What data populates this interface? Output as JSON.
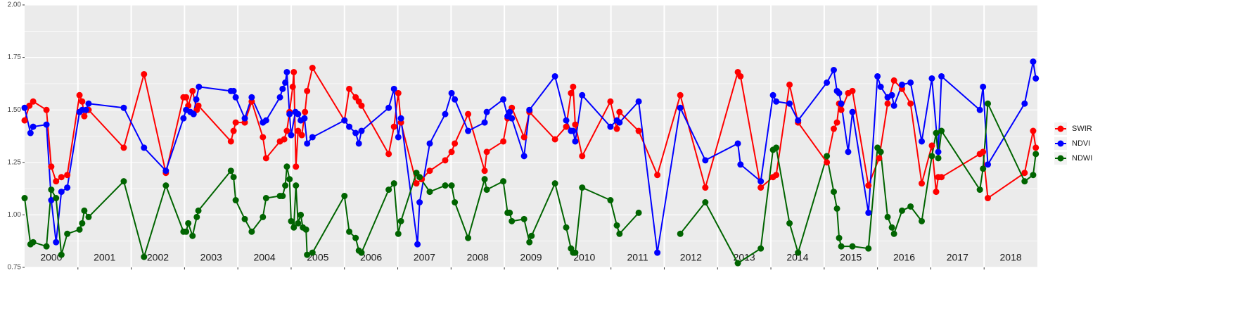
{
  "chart_data": {
    "type": "line",
    "xlim": [
      2000,
      2019
    ],
    "ylim": [
      0.75,
      2.0
    ],
    "yticks": [
      {
        "value": 0.75,
        "label": "0.75"
      },
      {
        "value": 1.0,
        "label": "1.00"
      },
      {
        "value": 1.25,
        "label": "1.25"
      },
      {
        "value": 1.5,
        "label": "1.50"
      },
      {
        "value": 1.75,
        "label": "1.75"
      },
      {
        "value": 2.0,
        "label": "2.00"
      }
    ],
    "grid": true,
    "legend": "right",
    "annotations": [
      {
        "x": 2000.5,
        "text": "2000"
      },
      {
        "x": 2001.5,
        "text": "2001"
      },
      {
        "x": 2002.5,
        "text": "2002"
      },
      {
        "x": 2003.5,
        "text": "2003"
      },
      {
        "x": 2004.5,
        "text": "2004"
      },
      {
        "x": 2005.5,
        "text": "2005"
      },
      {
        "x": 2006.5,
        "text": "2006"
      },
      {
        "x": 2007.5,
        "text": "2007"
      },
      {
        "x": 2008.5,
        "text": "2008"
      },
      {
        "x": 2009.5,
        "text": "2009"
      },
      {
        "x": 2010.5,
        "text": "2010"
      },
      {
        "x": 2011.5,
        "text": "2011"
      },
      {
        "x": 2012.5,
        "text": "2012"
      },
      {
        "x": 2013.5,
        "text": "2013"
      },
      {
        "x": 2014.5,
        "text": "2014"
      },
      {
        "x": 2015.5,
        "text": "2015"
      },
      {
        "x": 2016.5,
        "text": "2016"
      },
      {
        "x": 2017.5,
        "text": "2017"
      },
      {
        "x": 2018.5,
        "text": "2018"
      }
    ],
    "series": [
      {
        "name": "SWIR",
        "color": "#ff0000",
        "x": [
          2000.0,
          2000.09,
          2000.16,
          2000.41,
          2000.5,
          2000.59,
          2000.69,
          2000.8,
          2001.03,
          2001.08,
          2001.12,
          2001.2,
          2001.86,
          2002.24,
          2002.65,
          2002.98,
          2003.03,
          2003.07,
          2003.15,
          2003.23,
          2003.26,
          2003.87,
          2003.92,
          2003.96,
          2004.13,
          2004.26,
          2004.47,
          2004.53,
          2004.79,
          2004.87,
          2004.92,
          2004.97,
          2005.03,
          2005.05,
          2005.09,
          2005.13,
          2005.2,
          2005.26,
          2005.3,
          2005.4,
          2006.0,
          2006.09,
          2006.21,
          2006.27,
          2006.32,
          2006.83,
          2006.93,
          2007.01,
          2007.06,
          2007.35,
          2007.45,
          2007.6,
          2007.89,
          2008.01,
          2008.07,
          2008.32,
          2008.63,
          2008.67,
          2008.98,
          2009.06,
          2009.14,
          2009.37,
          2009.47,
          2009.95,
          2010.16,
          2010.25,
          2010.29,
          2010.33,
          2010.46,
          2010.99,
          2011.11,
          2011.16,
          2011.52,
          2011.87,
          2012.3,
          2012.77,
          2013.38,
          2013.43,
          2013.81,
          2014.04,
          2014.1,
          2014.35,
          2014.51,
          2015.05,
          2015.18,
          2015.24,
          2015.28,
          2015.32,
          2015.45,
          2015.53,
          2015.83,
          2016.03,
          2016.19,
          2016.31,
          2016.46,
          2016.62,
          2016.83,
          2017.02,
          2017.1,
          2017.14,
          2017.2,
          2017.92,
          2017.98,
          2018.07,
          2018.76,
          2018.92,
          2018.97
        ],
        "values": [
          1.45,
          1.52,
          1.54,
          1.5,
          1.23,
          1.16,
          1.18,
          1.19,
          1.57,
          1.54,
          1.47,
          1.5,
          1.32,
          1.67,
          1.2,
          1.56,
          1.56,
          1.52,
          1.59,
          1.5,
          1.52,
          1.35,
          1.4,
          1.44,
          1.44,
          1.54,
          1.37,
          1.27,
          1.35,
          1.36,
          1.4,
          1.49,
          1.61,
          1.68,
          1.23,
          1.4,
          1.38,
          1.49,
          1.59,
          1.7,
          1.45,
          1.6,
          1.56,
          1.54,
          1.52,
          1.29,
          1.42,
          1.58,
          1.44,
          1.15,
          1.17,
          1.21,
          1.26,
          1.3,
          1.34,
          1.48,
          1.21,
          1.3,
          1.35,
          1.46,
          1.51,
          1.37,
          1.49,
          1.36,
          1.42,
          1.58,
          1.61,
          1.43,
          1.28,
          1.54,
          1.41,
          1.49,
          1.4,
          1.19,
          1.57,
          1.13,
          1.68,
          1.66,
          1.13,
          1.18,
          1.19,
          1.62,
          1.44,
          1.25,
          1.41,
          1.44,
          1.53,
          1.5,
          1.58,
          1.59,
          1.14,
          1.27,
          1.53,
          1.64,
          1.6,
          1.53,
          1.15,
          1.33,
          1.11,
          1.18,
          1.18,
          1.29,
          1.3,
          1.08,
          1.2,
          1.4,
          1.32
        ]
      },
      {
        "name": "NDVI",
        "color": "#0000ff",
        "x": [
          2000.0,
          2000.11,
          2000.16,
          2000.41,
          2000.5,
          2000.59,
          2000.69,
          2000.8,
          2001.03,
          2001.08,
          2001.15,
          2001.2,
          2001.86,
          2002.24,
          2002.65,
          2002.98,
          2003.03,
          2003.11,
          2003.17,
          2003.22,
          2003.27,
          2003.87,
          2003.92,
          2003.96,
          2004.13,
          2004.26,
          2004.47,
          2004.53,
          2004.79,
          2004.84,
          2004.89,
          2004.92,
          2004.97,
          2005.0,
          2005.08,
          2005.13,
          2005.18,
          2005.25,
          2005.3,
          2005.4,
          2006.0,
          2006.09,
          2006.21,
          2006.27,
          2006.32,
          2006.83,
          2006.93,
          2007.01,
          2007.06,
          2007.37,
          2007.41,
          2007.6,
          2007.89,
          2008.01,
          2008.07,
          2008.32,
          2008.63,
          2008.67,
          2008.98,
          2009.06,
          2009.1,
          2009.14,
          2009.37,
          2009.47,
          2009.95,
          2010.16,
          2010.25,
          2010.29,
          2010.33,
          2010.46,
          2010.99,
          2011.11,
          2011.16,
          2011.52,
          2011.87,
          2012.3,
          2012.77,
          2013.38,
          2013.43,
          2013.81,
          2014.04,
          2014.1,
          2014.35,
          2014.51,
          2015.05,
          2015.18,
          2015.24,
          2015.28,
          2015.32,
          2015.45,
          2015.53,
          2015.83,
          2016.0,
          2016.06,
          2016.19,
          2016.27,
          2016.31,
          2016.46,
          2016.62,
          2016.83,
          2017.02,
          2017.14,
          2017.2,
          2017.92,
          2017.98,
          2018.07,
          2018.76,
          2018.92,
          2018.97
        ],
        "values": [
          1.51,
          1.39,
          1.42,
          1.43,
          1.07,
          0.87,
          1.11,
          1.13,
          1.49,
          1.5,
          1.5,
          1.53,
          1.51,
          1.32,
          1.21,
          1.46,
          1.5,
          1.49,
          1.48,
          1.55,
          1.61,
          1.59,
          1.59,
          1.56,
          1.46,
          1.56,
          1.44,
          1.45,
          1.56,
          1.6,
          1.63,
          1.68,
          1.48,
          1.38,
          1.49,
          1.48,
          1.45,
          1.46,
          1.34,
          1.37,
          1.45,
          1.42,
          1.39,
          1.34,
          1.4,
          1.51,
          1.6,
          1.37,
          1.46,
          0.86,
          1.06,
          1.34,
          1.48,
          1.58,
          1.55,
          1.4,
          1.44,
          1.49,
          1.55,
          1.47,
          1.49,
          1.46,
          1.28,
          1.5,
          1.66,
          1.45,
          1.4,
          1.4,
          1.35,
          1.57,
          1.42,
          1.45,
          1.44,
          1.54,
          0.82,
          1.51,
          1.26,
          1.34,
          1.24,
          1.16,
          1.57,
          1.54,
          1.53,
          1.45,
          1.63,
          1.69,
          1.59,
          1.58,
          1.53,
          1.3,
          1.49,
          1.01,
          1.66,
          1.61,
          1.56,
          1.57,
          1.52,
          1.62,
          1.63,
          1.35,
          1.65,
          1.3,
          1.66,
          1.5,
          1.61,
          1.24,
          1.53,
          1.73,
          1.65
        ]
      },
      {
        "name": "NDWI",
        "color": "#006400",
        "x": [
          2000.0,
          2000.11,
          2000.16,
          2000.41,
          2000.5,
          2000.59,
          2000.69,
          2000.8,
          2001.03,
          2001.08,
          2001.12,
          2001.2,
          2001.86,
          2002.24,
          2002.65,
          2002.98,
          2003.03,
          2003.07,
          2003.15,
          2003.23,
          2003.26,
          2003.87,
          2003.92,
          2003.96,
          2004.13,
          2004.26,
          2004.47,
          2004.53,
          2004.79,
          2004.84,
          2004.89,
          2004.92,
          2004.97,
          2005.0,
          2005.05,
          2005.09,
          2005.13,
          2005.18,
          2005.22,
          2005.28,
          2005.3,
          2005.4,
          2006.0,
          2006.09,
          2006.21,
          2006.27,
          2006.32,
          2006.83,
          2006.93,
          2007.01,
          2007.06,
          2007.35,
          2007.41,
          2007.6,
          2007.89,
          2008.01,
          2008.07,
          2008.32,
          2008.63,
          2008.67,
          2008.98,
          2009.06,
          2009.1,
          2009.14,
          2009.37,
          2009.47,
          2009.51,
          2009.95,
          2010.16,
          2010.25,
          2010.29,
          2010.33,
          2010.46,
          2010.99,
          2011.11,
          2011.16,
          2011.52,
          2011.87,
          2012.3,
          2012.77,
          2013.38,
          2013.81,
          2014.04,
          2014.1,
          2014.35,
          2014.51,
          2015.05,
          2015.18,
          2015.24,
          2015.28,
          2015.32,
          2015.53,
          2015.83,
          2016.0,
          2016.06,
          2016.19,
          2016.27,
          2016.31,
          2016.46,
          2016.62,
          2016.83,
          2017.02,
          2017.1,
          2017.14,
          2017.2,
          2017.92,
          2017.98,
          2018.07,
          2018.76,
          2018.92,
          2018.97
        ],
        "values": [
          1.08,
          0.86,
          0.87,
          0.85,
          1.12,
          1.08,
          0.81,
          0.91,
          0.93,
          0.96,
          1.02,
          0.99,
          1.16,
          0.8,
          1.14,
          0.92,
          0.92,
          0.96,
          0.9,
          0.99,
          1.02,
          1.21,
          1.18,
          1.07,
          0.98,
          0.92,
          0.99,
          1.08,
          1.09,
          1.09,
          1.14,
          1.23,
          1.17,
          0.97,
          0.94,
          1.14,
          0.96,
          1.0,
          0.94,
          0.93,
          0.81,
          0.82,
          1.09,
          0.92,
          0.89,
          0.83,
          0.82,
          1.12,
          1.15,
          0.91,
          0.97,
          1.2,
          1.18,
          1.11,
          1.14,
          1.14,
          1.06,
          0.89,
          1.17,
          1.12,
          1.16,
          1.01,
          1.01,
          0.97,
          0.98,
          0.87,
          0.9,
          1.15,
          0.94,
          0.84,
          0.82,
          0.82,
          1.13,
          1.07,
          0.95,
          0.91,
          1.01,
          null,
          0.91,
          1.06,
          0.77,
          0.84,
          1.31,
          1.32,
          0.96,
          0.82,
          1.28,
          1.11,
          1.03,
          0.89,
          0.85,
          0.85,
          0.84,
          1.32,
          1.3,
          0.99,
          0.94,
          0.91,
          1.02,
          1.04,
          0.97,
          1.28,
          1.39,
          1.27,
          1.4,
          1.12,
          1.22,
          1.53,
          1.16,
          1.19,
          1.29
        ]
      }
    ]
  }
}
